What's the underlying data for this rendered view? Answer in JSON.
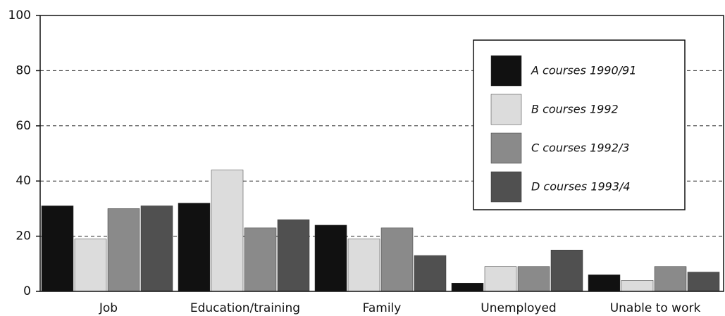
{
  "chart_data": {
    "type": "bar",
    "categories": [
      "Job",
      "Education/training",
      "Family",
      "Unemployed",
      "Unable to work"
    ],
    "series": [
      {
        "name": "A courses 1990/91",
        "color": "#111111",
        "values": [
          31,
          32,
          24,
          3,
          6
        ]
      },
      {
        "name": "B courses 1992",
        "color": "#dcdcdc",
        "values": [
          19,
          44,
          19,
          9,
          4
        ]
      },
      {
        "name": "C courses 1992/3",
        "color": "#8a8a8a",
        "values": [
          30,
          23,
          23,
          9,
          9
        ]
      },
      {
        "name": "D courses 1993/4",
        "color": "#505050",
        "values": [
          31,
          26,
          13,
          15,
          7
        ]
      }
    ],
    "ylim": [
      0,
      100
    ],
    "yticks": [
      0,
      20,
      40,
      60,
      80,
      100
    ],
    "grid": true,
    "legend": "upper right"
  }
}
